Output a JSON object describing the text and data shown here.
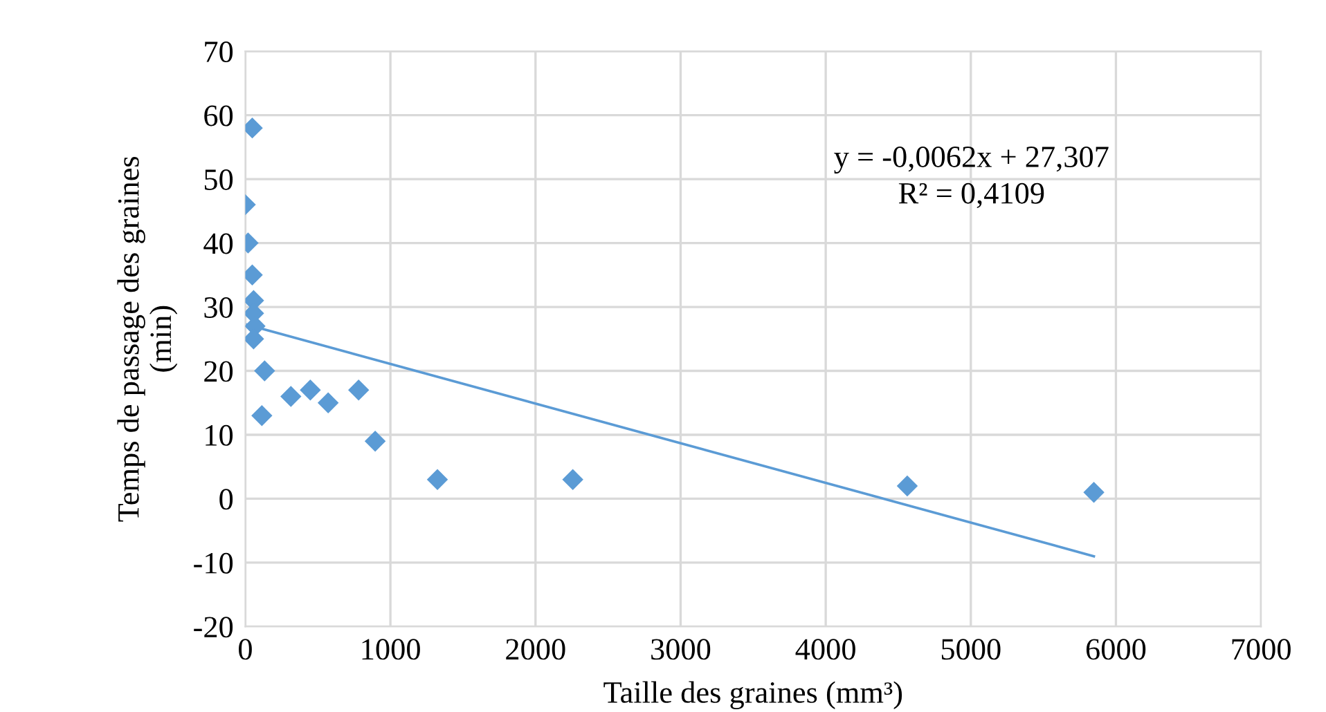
{
  "chart_data": {
    "type": "scatter",
    "xlabel": "Taille des graines (mm³)",
    "ylabel": "Temps de passage des graines\n(min)",
    "xlim": [
      0,
      7000
    ],
    "xticks": [
      0,
      1000,
      2000,
      3000,
      4000,
      5000,
      6000,
      7000
    ],
    "ylim": [
      -20,
      70
    ],
    "yticks": [
      -20,
      -10,
      0,
      10,
      20,
      30,
      40,
      50,
      60,
      70
    ],
    "grid": true,
    "marker": "diamond",
    "annotations": [
      "y = -0,0062x + 27,307\nR² = 0,4109"
    ],
    "series": [
      {
        "color": "#5b9bd5",
        "x": [
          48,
          0,
          19,
          48,
          57,
          57,
          67,
          57,
          133,
          114,
          314,
          448,
          571,
          781,
          895,
          1324,
          2257,
          4562,
          5848
        ],
        "values": [
          58,
          46,
          40,
          35,
          31,
          29,
          27,
          25,
          20,
          13,
          16,
          17,
          15,
          17,
          9,
          3,
          3,
          2,
          1
        ]
      },
      {
        "type": "line",
        "color": "#5b9bd5",
        "marker": "none",
        "x": [
          0,
          5848
        ],
        "values": [
          27.3,
          -9.0
        ]
      }
    ]
  }
}
